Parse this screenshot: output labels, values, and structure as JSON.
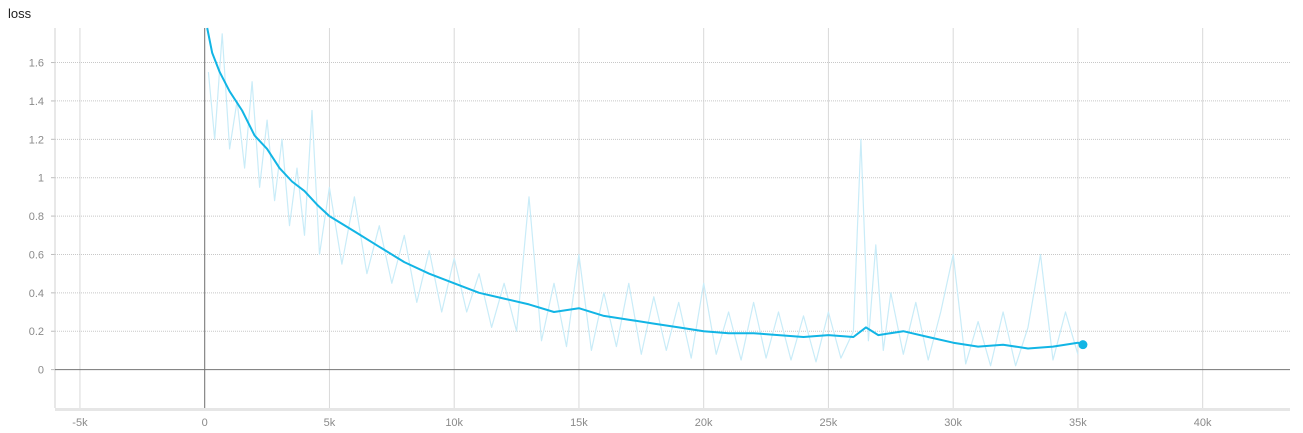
{
  "chart_data": {
    "type": "line",
    "title": "loss",
    "xlabel": "",
    "ylabel": "",
    "xlim": [
      -6000,
      43500
    ],
    "ylim": [
      -0.2,
      1.78
    ],
    "x_ticks": [
      -5000,
      0,
      5000,
      10000,
      15000,
      20000,
      25000,
      30000,
      35000,
      40000
    ],
    "x_tick_labels": [
      "-5k",
      "0",
      "5k",
      "10k",
      "15k",
      "20k",
      "25k",
      "30k",
      "35k",
      "40k"
    ],
    "y_ticks": [
      0,
      0.2,
      0.4,
      0.6,
      0.8,
      1.0,
      1.2,
      1.4,
      1.6
    ],
    "y_tick_labels": [
      "0",
      "0.2",
      "0.4",
      "0.6",
      "0.8",
      "1",
      "1.2",
      "1.4",
      "1.6"
    ],
    "grid": true,
    "colors": {
      "smoothed": "#12b5e5",
      "raw": "#c9ecf8",
      "grid": "#d9d9d9",
      "axis": "#757575"
    },
    "series": [
      {
        "role": "smoothed",
        "x": [
          100,
          300,
          600,
          1000,
          1500,
          2000,
          2500,
          3000,
          3500,
          4000,
          4500,
          5000,
          6000,
          7000,
          8000,
          9000,
          10000,
          11000,
          12000,
          13000,
          14000,
          15000,
          16000,
          17000,
          18000,
          19000,
          20000,
          21000,
          22000,
          23000,
          24000,
          25000,
          26000,
          26500,
          27000,
          28000,
          29000,
          30000,
          31000,
          32000,
          33000,
          34000,
          35000,
          35200
        ],
        "y": [
          1.78,
          1.65,
          1.55,
          1.45,
          1.35,
          1.22,
          1.15,
          1.05,
          0.98,
          0.93,
          0.86,
          0.8,
          0.72,
          0.64,
          0.56,
          0.5,
          0.45,
          0.4,
          0.37,
          0.34,
          0.3,
          0.32,
          0.28,
          0.26,
          0.24,
          0.22,
          0.2,
          0.19,
          0.19,
          0.18,
          0.17,
          0.18,
          0.17,
          0.22,
          0.18,
          0.2,
          0.17,
          0.14,
          0.12,
          0.13,
          0.11,
          0.12,
          0.14,
          0.13
        ]
      },
      {
        "role": "raw",
        "x": [
          150,
          400,
          700,
          1000,
          1300,
          1600,
          1900,
          2200,
          2500,
          2800,
          3100,
          3400,
          3700,
          4000,
          4300,
          4600,
          5000,
          5500,
          6000,
          6500,
          7000,
          7500,
          8000,
          8500,
          9000,
          9500,
          10000,
          10500,
          11000,
          11500,
          12000,
          12500,
          13000,
          13500,
          14000,
          14500,
          15000,
          15500,
          16000,
          16500,
          17000,
          17500,
          18000,
          18500,
          19000,
          19500,
          20000,
          20500,
          21000,
          21500,
          22000,
          22500,
          23000,
          23500,
          24000,
          24500,
          25000,
          25500,
          26000,
          26300,
          26600,
          26900,
          27200,
          27500,
          28000,
          28500,
          29000,
          29500,
          30000,
          30500,
          31000,
          31500,
          32000,
          32500,
          33000,
          33500,
          34000,
          34500,
          35000
        ],
        "y": [
          1.55,
          1.2,
          1.75,
          1.15,
          1.4,
          1.05,
          1.5,
          0.95,
          1.3,
          0.88,
          1.2,
          0.75,
          1.05,
          0.7,
          1.35,
          0.6,
          0.95,
          0.55,
          0.9,
          0.5,
          0.75,
          0.45,
          0.7,
          0.35,
          0.62,
          0.3,
          0.58,
          0.3,
          0.5,
          0.22,
          0.45,
          0.2,
          0.9,
          0.15,
          0.45,
          0.12,
          0.6,
          0.1,
          0.4,
          0.12,
          0.45,
          0.08,
          0.38,
          0.1,
          0.35,
          0.06,
          0.45,
          0.08,
          0.3,
          0.05,
          0.35,
          0.06,
          0.3,
          0.05,
          0.28,
          0.04,
          0.3,
          0.06,
          0.2,
          1.2,
          0.15,
          0.65,
          0.1,
          0.4,
          0.08,
          0.35,
          0.05,
          0.3,
          0.6,
          0.03,
          0.25,
          0.02,
          0.3,
          0.02,
          0.22,
          0.6,
          0.05,
          0.3,
          0.08
        ]
      }
    ]
  }
}
